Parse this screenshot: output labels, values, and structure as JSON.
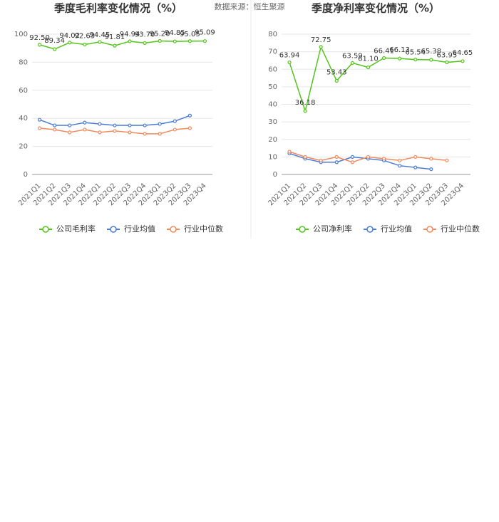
{
  "chart_data": [
    {
      "type": "line",
      "title": "季度毛利率变化情况（%）",
      "source": "数据来源：恒生聚源",
      "categories": [
        "2021Q1",
        "2021Q2",
        "2021Q3",
        "2021Q4",
        "2022Q1",
        "2022Q2",
        "2022Q3",
        "2022Q4",
        "2023Q1",
        "2023Q2",
        "2023Q3",
        "2023Q4"
      ],
      "ylim": [
        0,
        100
      ],
      "yticks": [
        0,
        20,
        40,
        60,
        80,
        100
      ],
      "grid": true,
      "series": [
        {
          "name": "公司毛利率",
          "color": "#52c41a",
          "values": [
            92.5,
            89.34,
            94.02,
            92.63,
            94.45,
            91.81,
            94.94,
            93.7,
            95.2,
            94.85,
            95.05,
            95.09
          ],
          "value_labels": [
            "92.50",
            "89.34",
            "94.02",
            "92.63",
            "94.45",
            "91.81",
            "94.94",
            "93.70",
            "95.20",
            "94.85",
            "95.05",
            "95.09"
          ]
        },
        {
          "name": "行业均值",
          "color": "#4a7bd4",
          "values": [
            39,
            35,
            35,
            37,
            36,
            35,
            35,
            35,
            36,
            38,
            42,
            null
          ]
        },
        {
          "name": "行业中位数",
          "color": "#f08a5d",
          "values": [
            33,
            32,
            30,
            32,
            30,
            31,
            30,
            29,
            29,
            32,
            33,
            null
          ]
        }
      ]
    },
    {
      "type": "line",
      "title": "季度净利率变化情况（%）",
      "categories": [
        "2021Q1",
        "2021Q2",
        "2021Q3",
        "2021Q4",
        "2022Q1",
        "2022Q2",
        "2022Q3",
        "2022Q4",
        "2023Q1",
        "2023Q2",
        "2023Q3",
        "2023Q4"
      ],
      "ylim": [
        0,
        80
      ],
      "yticks": [
        0,
        10,
        20,
        30,
        40,
        50,
        60,
        70,
        80
      ],
      "grid": true,
      "series": [
        {
          "name": "公司净利率",
          "color": "#52c41a",
          "values": [
            63.94,
            36.18,
            72.75,
            53.43,
            63.59,
            61.1,
            66.41,
            66.13,
            65.54,
            65.38,
            63.95,
            64.65
          ],
          "value_labels": [
            "63.94",
            "36.18",
            "72.75",
            "53.43",
            "63.59",
            "61.10",
            "66.41",
            "66.13",
            "65.54",
            "65.38",
            "63.95",
            "64.65"
          ]
        },
        {
          "name": "行业均值",
          "color": "#4a7bd4",
          "values": [
            12,
            9,
            7,
            7,
            10,
            9,
            8,
            5,
            4,
            3,
            null,
            null
          ]
        },
        {
          "name": "行业中位数",
          "color": "#f08a5d",
          "values": [
            13,
            10,
            8,
            10,
            7,
            10,
            9,
            8,
            10,
            9,
            8,
            null
          ]
        }
      ]
    }
  ]
}
